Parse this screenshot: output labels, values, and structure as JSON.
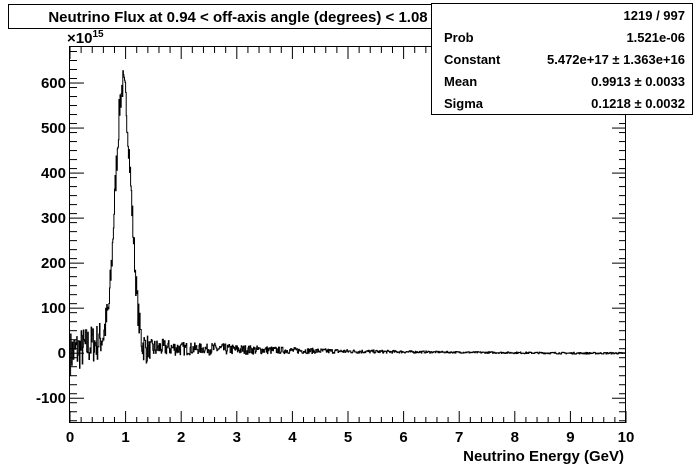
{
  "chart_data": {
    "type": "line",
    "title": "Neutrino Flux at  0.94 < off-axis angle (degrees) <  1.08",
    "xlabel": "Neutrino Energy (GeV)",
    "ylabel": "",
    "y_exponent_label": "×10",
    "y_exponent_power": "15",
    "xlim": [
      0,
      10
    ],
    "ylim": [
      -155,
      680
    ],
    "x_ticks": [
      "0",
      "1",
      "2",
      "3",
      "4",
      "5",
      "6",
      "7",
      "8",
      "9",
      "10"
    ],
    "y_ticks": [
      "-100",
      "0",
      "100",
      "200",
      "300",
      "400",
      "500",
      "600"
    ],
    "grid": false,
    "series": [
      {
        "x": [
          0.0,
          0.1,
          0.2,
          0.3,
          0.4,
          0.5,
          0.6,
          0.7,
          0.75,
          0.8,
          0.85,
          0.9,
          0.95,
          1.0,
          1.05,
          1.1,
          1.15,
          1.2,
          1.25,
          1.3,
          1.4,
          1.5,
          1.6,
          1.8,
          2.0,
          2.5,
          3.0,
          4.0,
          5.0,
          6.0,
          7.0,
          8.0,
          9.0,
          10.0
        ],
        "values": [
          0,
          5,
          10,
          15,
          20,
          25,
          40,
          100,
          200,
          330,
          450,
          560,
          600,
          570,
          480,
          360,
          240,
          130,
          60,
          20,
          8,
          10,
          12,
          12,
          10,
          10,
          8,
          6,
          4,
          3,
          2,
          1,
          0,
          0
        ]
      }
    ]
  },
  "stats_box": {
    "rows": [
      {
        "label": "",
        "value": "1219 / 997"
      },
      {
        "label": "Prob",
        "value": "1.521e-06"
      },
      {
        "label": "Constant",
        "value": "5.472e+17 ± 1.363e+16"
      },
      {
        "label": "Mean",
        "value": "0.9913 ± 0.0033"
      },
      {
        "label": "Sigma",
        "value": "0.1218 ± 0.0032"
      }
    ]
  }
}
